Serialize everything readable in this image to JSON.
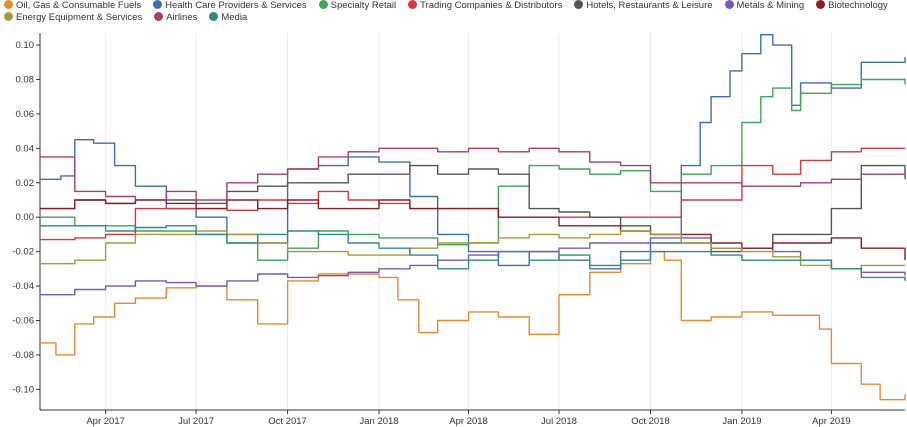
{
  "chart_data": {
    "type": "line",
    "title": "",
    "xlabel": "",
    "ylabel": "",
    "xlim": [
      "2017-01-25",
      "2019-06-14"
    ],
    "ylim": [
      -0.112,
      0.107
    ],
    "grid": "vertical",
    "legend_position": "top-left",
    "y_ticks": [
      -0.1,
      -0.08,
      -0.06,
      -0.04,
      -0.02,
      0.0,
      0.02,
      0.04,
      0.06,
      0.08,
      0.1
    ],
    "y_tick_labels": [
      "-0.10",
      "-0.08",
      "-0.06",
      "-0.04",
      "-0.02",
      "0.00",
      "0.02",
      "0.04",
      "0.06",
      "0.08",
      "0.10"
    ],
    "x_ticks": [
      "2017-04-01",
      "2017-07-01",
      "2017-10-01",
      "2018-01-01",
      "2018-04-01",
      "2018-07-01",
      "2018-10-01",
      "2019-01-01",
      "2019-04-01"
    ],
    "x_tick_labels": [
      "Apr 2017",
      "Jul 2017",
      "Oct 2017",
      "Jan 2018",
      "Apr 2018",
      "Jul 2018",
      "Oct 2018",
      "Jan 2019",
      "Apr 2019"
    ],
    "series": [
      {
        "name": "Oil, Gas & Consumable Fuels",
        "color": "#e8892f",
        "x": [
          "2017-01-25",
          "2017-02-10",
          "2017-03-01",
          "2017-03-20",
          "2017-04-10",
          "2017-05-01",
          "2017-06-01",
          "2017-07-01",
          "2017-08-01",
          "2017-09-01",
          "2017-10-01",
          "2017-11-01",
          "2017-12-01",
          "2018-01-01",
          "2018-01-20",
          "2018-02-10",
          "2018-03-01",
          "2018-04-01",
          "2018-05-01",
          "2018-06-01",
          "2018-07-01",
          "2018-08-01",
          "2018-09-01",
          "2018-10-01",
          "2018-10-15",
          "2018-11-01",
          "2018-12-01",
          "2019-01-01",
          "2019-02-01",
          "2019-03-01",
          "2019-03-20",
          "2019-04-01",
          "2019-05-01",
          "2019-05-20",
          "2019-06-14"
        ],
        "y": [
          -0.073,
          -0.08,
          -0.062,
          -0.058,
          -0.05,
          -0.047,
          -0.041,
          -0.04,
          -0.048,
          -0.062,
          -0.037,
          -0.033,
          -0.033,
          -0.035,
          -0.048,
          -0.067,
          -0.06,
          -0.055,
          -0.058,
          -0.068,
          -0.045,
          -0.032,
          -0.027,
          -0.02,
          -0.025,
          -0.06,
          -0.058,
          -0.055,
          -0.057,
          -0.057,
          -0.065,
          -0.085,
          -0.097,
          -0.106,
          -0.103
        ]
      },
      {
        "name": "Health Care Providers & Services",
        "color": "#3f6db4",
        "x": [
          "2017-01-25",
          "2017-02-15",
          "2017-03-01",
          "2017-03-20",
          "2017-04-10",
          "2017-05-01",
          "2017-06-01",
          "2017-07-01",
          "2017-08-01",
          "2017-09-01",
          "2017-10-01",
          "2017-11-01",
          "2017-12-01",
          "2018-01-01",
          "2018-02-01",
          "2018-03-01",
          "2018-04-01",
          "2018-05-01",
          "2018-06-01",
          "2018-07-01",
          "2018-08-01",
          "2018-09-01",
          "2018-10-01",
          "2018-11-01",
          "2018-11-20",
          "2018-12-01",
          "2018-12-20",
          "2019-01-01",
          "2019-01-20",
          "2019-02-01",
          "2019-02-20",
          "2019-03-01",
          "2019-04-01",
          "2019-05-01",
          "2019-06-14"
        ],
        "y": [
          0.022,
          0.024,
          0.045,
          0.043,
          0.03,
          0.018,
          0.005,
          0.0,
          -0.01,
          -0.015,
          0.028,
          0.03,
          0.035,
          0.032,
          0.012,
          -0.01,
          -0.02,
          -0.028,
          -0.02,
          -0.025,
          -0.03,
          -0.02,
          -0.015,
          0.03,
          0.055,
          0.07,
          0.085,
          0.095,
          0.106,
          0.1,
          0.065,
          0.078,
          0.075,
          0.09,
          0.093
        ]
      },
      {
        "name": "Specialty Retail",
        "color": "#3fa35a",
        "x": [
          "2017-01-25",
          "2017-03-01",
          "2017-04-01",
          "2017-05-01",
          "2017-06-01",
          "2017-07-01",
          "2017-08-01",
          "2017-09-01",
          "2017-10-01",
          "2017-11-01",
          "2017-12-01",
          "2018-01-01",
          "2018-02-01",
          "2018-03-01",
          "2018-04-01",
          "2018-05-01",
          "2018-06-01",
          "2018-07-01",
          "2018-08-01",
          "2018-09-01",
          "2018-10-01",
          "2018-11-01",
          "2018-12-01",
          "2019-01-01",
          "2019-01-20",
          "2019-02-01",
          "2019-02-20",
          "2019-03-01",
          "2019-04-01",
          "2019-05-01",
          "2019-06-14"
        ],
        "y": [
          0.0,
          -0.005,
          -0.005,
          -0.008,
          -0.008,
          -0.01,
          -0.015,
          -0.025,
          -0.018,
          -0.008,
          -0.01,
          -0.012,
          -0.012,
          -0.016,
          -0.015,
          0.018,
          0.03,
          0.028,
          0.025,
          0.027,
          0.015,
          0.025,
          0.03,
          0.055,
          0.07,
          0.075,
          0.062,
          0.072,
          0.077,
          0.08,
          0.077
        ]
      },
      {
        "name": "Trading Companies & Distributors",
        "color": "#d6373d",
        "x": [
          "2017-01-25",
          "2017-03-01",
          "2017-04-01",
          "2017-05-01",
          "2017-06-01",
          "2017-07-01",
          "2017-08-01",
          "2017-09-01",
          "2017-10-01",
          "2017-11-01",
          "2017-12-01",
          "2018-01-01",
          "2018-02-01",
          "2018-03-01",
          "2018-04-01",
          "2018-05-01",
          "2018-06-01",
          "2018-07-01",
          "2018-08-01",
          "2018-09-01",
          "2018-10-01",
          "2018-11-01",
          "2018-12-01",
          "2019-01-01",
          "2019-02-01",
          "2019-03-01",
          "2019-04-01",
          "2019-05-01",
          "2019-06-14"
        ],
        "y": [
          -0.013,
          -0.012,
          -0.01,
          0.005,
          0.005,
          0.005,
          0.004,
          0.01,
          0.008,
          0.015,
          0.01,
          0.008,
          0.005,
          0.005,
          0.005,
          0.0,
          0.0,
          0.0,
          0.0,
          0.0,
          0.0,
          0.01,
          0.01,
          0.03,
          0.025,
          0.033,
          0.038,
          0.04,
          0.04
        ]
      },
      {
        "name": "Hotels, Restaurants & Leisure",
        "color": "#555555",
        "x": [
          "2017-01-25",
          "2017-03-01",
          "2017-04-01",
          "2017-05-01",
          "2017-06-01",
          "2017-07-01",
          "2017-08-01",
          "2017-09-01",
          "2017-10-01",
          "2017-11-01",
          "2017-12-01",
          "2018-01-01",
          "2018-02-01",
          "2018-03-01",
          "2018-04-01",
          "2018-05-01",
          "2018-06-01",
          "2018-07-01",
          "2018-08-01",
          "2018-09-01",
          "2018-10-01",
          "2018-11-01",
          "2018-12-01",
          "2019-01-01",
          "2019-02-01",
          "2019-03-01",
          "2019-04-01",
          "2019-05-01",
          "2019-06-14"
        ],
        "y": [
          0.005,
          0.01,
          0.008,
          0.01,
          0.01,
          0.008,
          0.015,
          0.018,
          0.02,
          0.02,
          0.025,
          0.025,
          0.03,
          0.025,
          0.028,
          0.025,
          0.005,
          0.003,
          0.0,
          -0.005,
          -0.01,
          -0.015,
          -0.02,
          -0.018,
          -0.01,
          -0.01,
          0.005,
          0.03,
          0.022
        ]
      },
      {
        "name": "Metals & Mining",
        "color": "#7b57b7",
        "x": [
          "2017-01-25",
          "2017-03-01",
          "2017-04-01",
          "2017-05-01",
          "2017-06-01",
          "2017-07-01",
          "2017-08-01",
          "2017-09-01",
          "2017-10-01",
          "2017-11-01",
          "2017-12-01",
          "2018-01-01",
          "2018-02-01",
          "2018-03-01",
          "2018-04-01",
          "2018-05-01",
          "2018-06-01",
          "2018-07-01",
          "2018-08-01",
          "2018-09-01",
          "2018-10-01",
          "2018-11-01",
          "2018-12-01",
          "2019-01-01",
          "2019-02-01",
          "2019-03-01",
          "2019-04-01",
          "2019-05-01",
          "2019-06-14"
        ],
        "y": [
          -0.045,
          -0.042,
          -0.04,
          -0.037,
          -0.038,
          -0.04,
          -0.037,
          -0.033,
          -0.035,
          -0.034,
          -0.032,
          -0.03,
          -0.028,
          -0.025,
          -0.022,
          -0.02,
          -0.02,
          -0.018,
          -0.015,
          -0.015,
          -0.012,
          -0.012,
          -0.018,
          -0.018,
          -0.02,
          -0.025,
          -0.03,
          -0.032,
          -0.034
        ]
      },
      {
        "name": "Biotechnology",
        "color": "#8b1e22",
        "x": [
          "2017-01-25",
          "2017-03-01",
          "2017-04-01",
          "2017-05-01",
          "2017-06-01",
          "2017-07-01",
          "2017-08-01",
          "2017-09-01",
          "2017-10-01",
          "2017-11-01",
          "2017-12-01",
          "2018-01-01",
          "2018-02-01",
          "2018-03-01",
          "2018-04-01",
          "2018-05-01",
          "2018-06-01",
          "2018-07-01",
          "2018-08-01",
          "2018-09-01",
          "2018-10-01",
          "2018-11-01",
          "2018-12-01",
          "2019-01-01",
          "2019-02-01",
          "2019-03-01",
          "2019-04-01",
          "2019-05-01",
          "2019-06-14"
        ],
        "y": [
          0.005,
          0.01,
          0.008,
          0.01,
          0.008,
          0.005,
          0.01,
          0.005,
          0.01,
          0.005,
          0.005,
          0.01,
          0.005,
          0.005,
          0.005,
          0.0,
          0.0,
          -0.005,
          -0.005,
          -0.008,
          -0.01,
          -0.01,
          -0.015,
          -0.018,
          -0.015,
          -0.015,
          -0.012,
          -0.018,
          -0.025
        ]
      },
      {
        "name": "Energy Equipment & Services",
        "color": "#a89a3a",
        "x": [
          "2017-01-25",
          "2017-03-01",
          "2017-04-01",
          "2017-05-01",
          "2017-06-01",
          "2017-07-01",
          "2017-08-01",
          "2017-09-01",
          "2017-10-01",
          "2017-11-01",
          "2017-12-01",
          "2018-01-01",
          "2018-02-01",
          "2018-03-01",
          "2018-04-01",
          "2018-05-01",
          "2018-06-01",
          "2018-07-01",
          "2018-08-01",
          "2018-09-01",
          "2018-10-01",
          "2018-11-01",
          "2018-12-01",
          "2019-01-01",
          "2019-02-01",
          "2019-03-01",
          "2019-04-01",
          "2019-05-01",
          "2019-06-14"
        ],
        "y": [
          -0.027,
          -0.025,
          -0.015,
          -0.01,
          -0.01,
          -0.008,
          -0.01,
          -0.015,
          -0.02,
          -0.02,
          -0.022,
          -0.022,
          -0.018,
          -0.015,
          -0.015,
          -0.012,
          -0.01,
          -0.012,
          -0.01,
          -0.008,
          -0.01,
          -0.015,
          -0.018,
          -0.02,
          -0.023,
          -0.028,
          -0.03,
          -0.028,
          -0.028
        ]
      },
      {
        "name": "Airlines",
        "color": "#a3406f",
        "x": [
          "2017-01-25",
          "2017-03-01",
          "2017-04-01",
          "2017-05-01",
          "2017-06-01",
          "2017-07-01",
          "2017-08-01",
          "2017-09-01",
          "2017-10-01",
          "2017-11-01",
          "2017-12-01",
          "2018-01-01",
          "2018-02-01",
          "2018-03-01",
          "2018-04-01",
          "2018-05-01",
          "2018-06-01",
          "2018-07-01",
          "2018-08-01",
          "2018-09-01",
          "2018-10-01",
          "2018-11-01",
          "2018-12-01",
          "2019-01-01",
          "2019-02-01",
          "2019-03-01",
          "2019-04-01",
          "2019-05-01",
          "2019-06-14"
        ],
        "y": [
          0.035,
          0.015,
          0.012,
          0.01,
          0.015,
          0.01,
          0.02,
          0.025,
          0.028,
          0.035,
          0.038,
          0.04,
          0.04,
          0.038,
          0.04,
          0.038,
          0.04,
          0.038,
          0.032,
          0.03,
          0.02,
          0.02,
          0.02,
          0.018,
          0.018,
          0.02,
          0.022,
          0.025,
          0.028
        ]
      },
      {
        "name": "Media",
        "color": "#2e8a8a",
        "x": [
          "2017-01-25",
          "2017-03-01",
          "2017-04-01",
          "2017-05-01",
          "2017-06-01",
          "2017-07-01",
          "2017-08-01",
          "2017-09-01",
          "2017-10-01",
          "2017-11-01",
          "2017-12-01",
          "2018-01-01",
          "2018-02-01",
          "2018-03-01",
          "2018-04-01",
          "2018-05-01",
          "2018-06-01",
          "2018-07-01",
          "2018-08-01",
          "2018-09-01",
          "2018-10-01",
          "2018-11-01",
          "2018-12-01",
          "2019-01-01",
          "2019-02-01",
          "2019-03-01",
          "2019-04-01",
          "2019-05-01",
          "2019-06-14"
        ],
        "y": [
          -0.005,
          -0.005,
          -0.008,
          -0.006,
          -0.005,
          -0.01,
          -0.015,
          -0.01,
          -0.008,
          -0.01,
          -0.015,
          -0.018,
          -0.022,
          -0.03,
          -0.025,
          -0.02,
          -0.025,
          -0.022,
          -0.028,
          -0.025,
          -0.02,
          -0.02,
          -0.022,
          -0.025,
          -0.025,
          -0.025,
          -0.03,
          -0.035,
          -0.037
        ]
      }
    ]
  }
}
